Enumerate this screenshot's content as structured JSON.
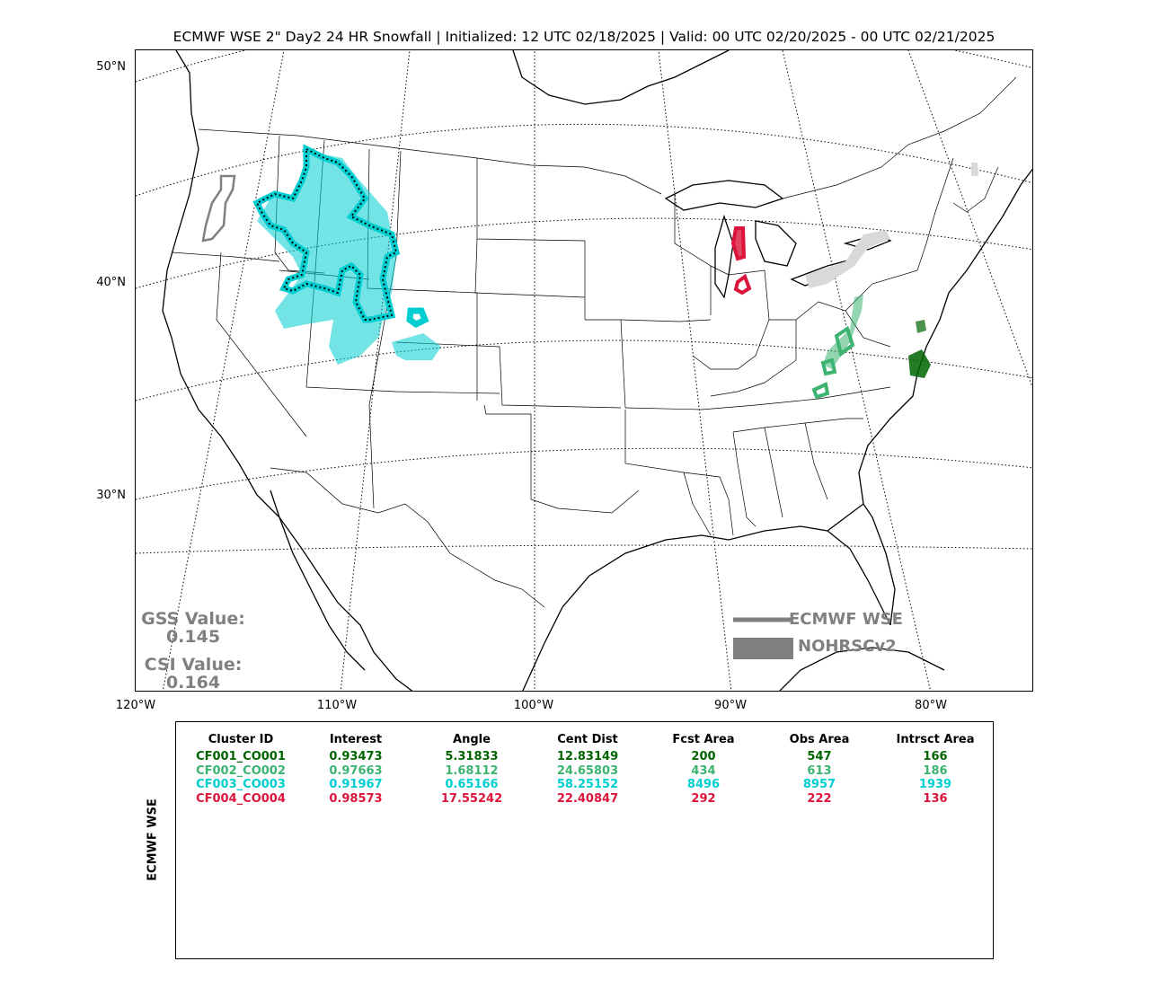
{
  "title": "ECMWF WSE 2\" Day2 24 HR Snowfall | Initialized: 12 UTC 02/18/2025 | Valid: 00 UTC 02/20/2025 - 00 UTC 02/21/2025",
  "lat_labels": [
    "50°N",
    "40°N",
    "30°N"
  ],
  "lon_labels": [
    "120°W",
    "110°W",
    "100°W",
    "90°W",
    "80°W"
  ],
  "scores": {
    "gss_label": "GSS Value:",
    "gss_value": "0.145",
    "csi_label": "CSI Value:",
    "csi_value": "0.164"
  },
  "legend": {
    "forecast_label": "ECMWF WSE",
    "observed_label": "NOHRSCv2"
  },
  "colors": {
    "cluster1": "#006400",
    "cluster2": "#3cb371",
    "cluster3": "#00ced1",
    "cluster4": "#dc143c",
    "legend_gray": "#808080",
    "unmatched_fill": "#d9d9d9"
  },
  "table": {
    "side_label": "ECMWF WSE",
    "headers": [
      "Cluster ID",
      "Interest",
      "Angle",
      "Cent Dist",
      "Fcst Area",
      "Obs Area",
      "Intrsct Area"
    ],
    "rows": [
      {
        "color": "#006400",
        "cells": [
          "CF001_CO001",
          "0.93473",
          "5.31833",
          "12.83149",
          "200",
          "547",
          "166"
        ]
      },
      {
        "color": "#3cb371",
        "cells": [
          "CF002_CO002",
          "0.97663",
          "1.68112",
          "24.65803",
          "434",
          "613",
          "186"
        ]
      },
      {
        "color": "#00ced1",
        "cells": [
          "CF003_CO003",
          "0.91967",
          "0.65166",
          "58.25152",
          "8496",
          "8957",
          "1939"
        ]
      },
      {
        "color": "#dc143c",
        "cells": [
          "CF004_CO004",
          "0.98573",
          "17.55242",
          "22.40847",
          "292",
          "222",
          "136"
        ]
      }
    ]
  }
}
